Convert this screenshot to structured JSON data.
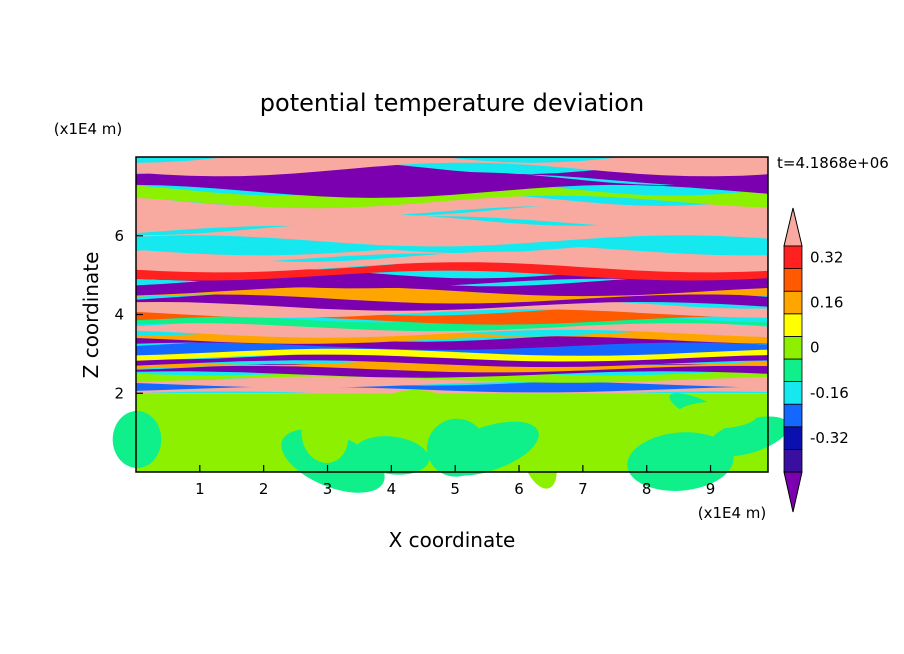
{
  "chart_data": {
    "type": "heatmap",
    "title": "potential temperature deviation",
    "xlabel": "X coordinate",
    "ylabel": "Z coordinate",
    "x_unit": "(x1E4 m)",
    "y_unit": "(x1E4 m)",
    "time_label": "t=4.1868e+06",
    "xlim": [
      0,
      9.9
    ],
    "ylim": [
      0,
      8.0
    ],
    "x_ticks": [
      1,
      2,
      3,
      4,
      5,
      6,
      7,
      8,
      9
    ],
    "y_ticks": [
      2,
      4,
      6
    ],
    "colorbar": {
      "levels": [
        -0.4,
        -0.32,
        -0.24,
        -0.16,
        -0.08,
        0,
        0.08,
        0.16,
        0.24,
        0.32,
        0.4
      ],
      "labels": [
        "0.32",
        "0.16",
        "0",
        "-0.16",
        "-0.32"
      ],
      "label_values": [
        0.32,
        0.16,
        0,
        -0.16,
        -0.32
      ],
      "extend": "both",
      "colors": [
        "#7a00b0",
        "#3a0fa0",
        "#0a10b0",
        "#1468ff",
        "#16e8f0",
        "#0ff08a",
        "#8cf000",
        "#ffff00",
        "#ffa500",
        "#ff5a00",
        "#ff2020",
        "#f8aaa0"
      ]
    },
    "field_description": {
      "lower_layer": {
        "z_range": [
          0,
          2
        ],
        "values": [
          0.04,
          -0.04
        ]
      },
      "upper_layer": {
        "z_range": [
          2,
          8
        ],
        "value_range": [
          -0.4,
          0.4
        ]
      }
    }
  }
}
